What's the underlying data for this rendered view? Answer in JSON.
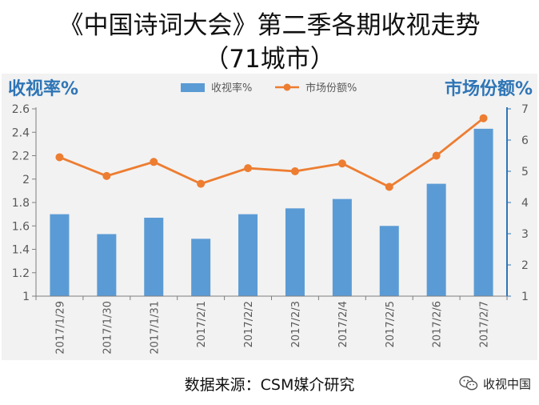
{
  "title_line1": "《中国诗词大会》第二季各期收视走势",
  "title_line2": "（71城市）",
  "source": "数据来源：CSM媒介研究",
  "watermark": "收视中国",
  "watermark_icon": "wechat-icon",
  "colors": {
    "bar": "#5b9bd5",
    "line": "#ed7d31",
    "axis_title": "#2e75b6"
  },
  "chart_data": {
    "type": "bar",
    "categories": [
      "2017/1/29",
      "2017/1/30",
      "2017/1/31",
      "2017/2/1",
      "2017/2/2",
      "2017/2/3",
      "2017/2/4",
      "2017/2/5",
      "2017/2/6",
      "2017/2/7"
    ],
    "series": [
      {
        "name": "收视率%",
        "type": "bar",
        "axis": "left",
        "values": [
          1.7,
          1.53,
          1.67,
          1.49,
          1.7,
          1.75,
          1.83,
          1.6,
          1.96,
          2.43
        ]
      },
      {
        "name": "市场份额%",
        "type": "line",
        "axis": "right",
        "values": [
          5.45,
          4.85,
          5.3,
          4.6,
          5.1,
          5.0,
          5.25,
          4.5,
          5.5,
          6.7
        ]
      }
    ],
    "ylabel": "收视率%",
    "y2label": "市场份额%",
    "ylim": [
      1,
      2.6
    ],
    "yticks": [
      "1",
      "1.2",
      "1.4",
      "1.6",
      "1.8",
      "2",
      "2.2",
      "2.4",
      "2.6"
    ],
    "y2lim": [
      1,
      7
    ],
    "y2ticks": [
      "1",
      "2",
      "3",
      "4",
      "5",
      "6",
      "7"
    ],
    "legend_position": "top",
    "grid": false
  }
}
